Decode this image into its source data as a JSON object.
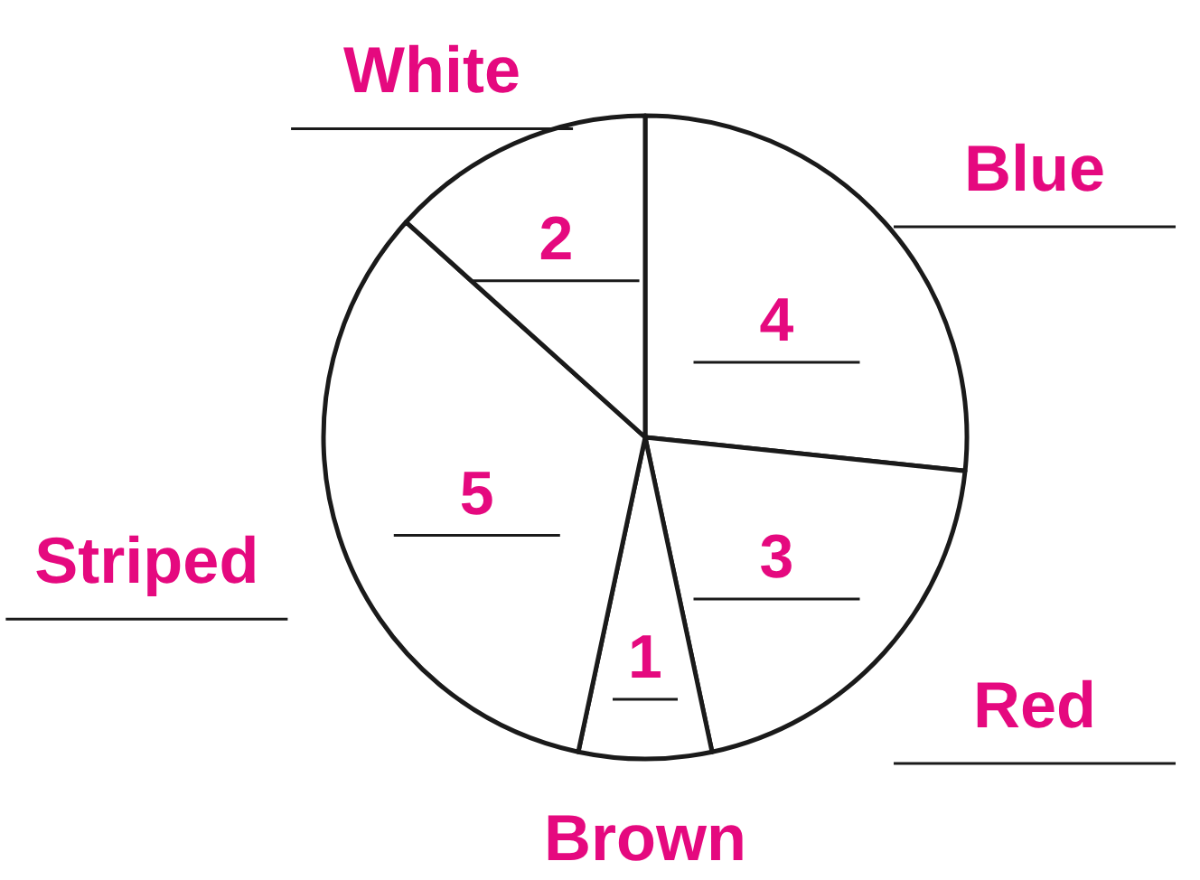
{
  "chart_data": {
    "type": "pie",
    "categories": [
      "Blue",
      "Red",
      "Brown",
      "Striped",
      "White"
    ],
    "values": [
      4,
      3,
      1,
      5,
      2
    ],
    "colors": [
      "#ffffff",
      "#ffffff",
      "#ffffff",
      "#ffffff",
      "#ffffff"
    ],
    "data_labels": true
  }
}
